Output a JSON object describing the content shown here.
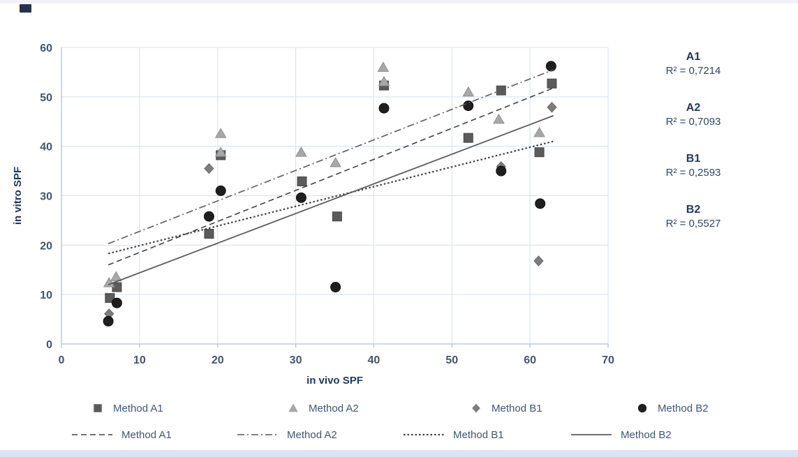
{
  "colors": {
    "grid": "#d3e1ef",
    "axis": "#a9c4dc",
    "tick_text": "#44546a",
    "title_text": "#1f3864",
    "legend_text": "#3c5678",
    "top_strip": "#f2f1f8",
    "corner_mark": "#26334e",
    "bottom_bar": "#d8e4ef"
  },
  "r2_panel": [
    {
      "name": "A1",
      "value": "R² = 0,7214"
    },
    {
      "name": "A2",
      "value": "R² = 0,7093"
    },
    {
      "name": "B1",
      "value": "R² = 0,2593"
    },
    {
      "name": "B2",
      "value": "R² = 0,5527"
    }
  ],
  "chart_data": {
    "type": "scatter",
    "title": "",
    "xlabel": "in vivo SPF",
    "ylabel": "in vitro SPF",
    "xlim": [
      0,
      70
    ],
    "ylim": [
      0,
      60
    ],
    "xticks": [
      0,
      10,
      20,
      30,
      40,
      50,
      60,
      70
    ],
    "yticks": [
      0,
      10,
      20,
      30,
      40,
      50,
      60
    ],
    "grid": true,
    "legend_position": "bottom",
    "series": [
      {
        "name": "Method A1",
        "marker": "square",
        "color": "#5b5b5b",
        "stroke": "#474747",
        "points": [
          [
            7.1,
            11.5
          ],
          [
            6.2,
            9.3
          ],
          [
            18.9,
            22.3
          ],
          [
            20.4,
            38.2
          ],
          [
            30.8,
            32.9
          ],
          [
            35.3,
            25.8
          ],
          [
            41.3,
            52.3
          ],
          [
            52.1,
            41.7
          ],
          [
            56.3,
            51.3
          ],
          [
            61.2,
            38.8
          ],
          [
            62.8,
            52.7
          ]
        ]
      },
      {
        "name": "Method A2",
        "marker": "triangle",
        "color": "#a8a8a8",
        "stroke": "#8f8f8f",
        "points": [
          [
            6.1,
            12.4
          ],
          [
            7.0,
            13.6
          ],
          [
            20.4,
            42.6
          ],
          [
            20.4,
            38.8
          ],
          [
            30.7,
            38.8
          ],
          [
            35.1,
            36.7
          ],
          [
            41.2,
            56.0
          ],
          [
            41.3,
            53.1
          ],
          [
            52.1,
            51.0
          ],
          [
            56.0,
            45.5
          ],
          [
            61.2,
            42.8
          ]
        ]
      },
      {
        "name": "Method B1",
        "marker": "diamond",
        "color": "#7d7d7d",
        "stroke": "#6a6a6a",
        "points": [
          [
            6.1,
            6.1
          ],
          [
            18.9,
            35.5
          ],
          [
            56.3,
            35.9
          ],
          [
            61.1,
            16.8
          ],
          [
            62.8,
            47.9
          ]
        ]
      },
      {
        "name": "Method B2",
        "marker": "circle",
        "color": "#1f1f1f",
        "stroke": "#111111",
        "points": [
          [
            6.0,
            4.6
          ],
          [
            7.1,
            8.3
          ],
          [
            18.9,
            25.8
          ],
          [
            20.4,
            31.0
          ],
          [
            30.7,
            29.6
          ],
          [
            35.1,
            11.5
          ],
          [
            41.3,
            47.7
          ],
          [
            52.1,
            48.2
          ],
          [
            56.3,
            35.0
          ],
          [
            61.3,
            28.4
          ],
          [
            62.7,
            56.2
          ]
        ]
      }
    ],
    "trendlines": [
      {
        "name": "Method A1",
        "style": "dashed",
        "color": "#404040",
        "x1": 6,
        "y1": 16.0,
        "x2": 63,
        "y2": 51.8
      },
      {
        "name": "Method A2",
        "style": "dashdot",
        "color": "#595959",
        "x1": 6,
        "y1": 20.3,
        "x2": 63,
        "y2": 55.5
      },
      {
        "name": "Method B1",
        "style": "dotted",
        "color": "#404040",
        "x1": 6,
        "y1": 18.3,
        "x2": 63,
        "y2": 41.0
      },
      {
        "name": "Method B2",
        "style": "solid",
        "color": "#595959",
        "x1": 6,
        "y1": 12.0,
        "x2": 63,
        "y2": 46.2
      }
    ],
    "legend": {
      "markers": [
        {
          "label": "Method A1",
          "marker": "square",
          "color": "#5b5b5b"
        },
        {
          "label": "Method A2",
          "marker": "triangle",
          "color": "#a8a8a8"
        },
        {
          "label": "Method B1",
          "marker": "diamond",
          "color": "#7d7d7d"
        },
        {
          "label": "Method B2",
          "marker": "circle",
          "color": "#1f1f1f"
        }
      ],
      "lines": [
        {
          "label": "Method A1",
          "style": "dashed",
          "color": "#404040"
        },
        {
          "label": "Method A2",
          "style": "dashdot",
          "color": "#595959"
        },
        {
          "label": "Method B1",
          "style": "dotted",
          "color": "#404040"
        },
        {
          "label": "Method B2",
          "style": "solid",
          "color": "#595959"
        }
      ]
    }
  }
}
